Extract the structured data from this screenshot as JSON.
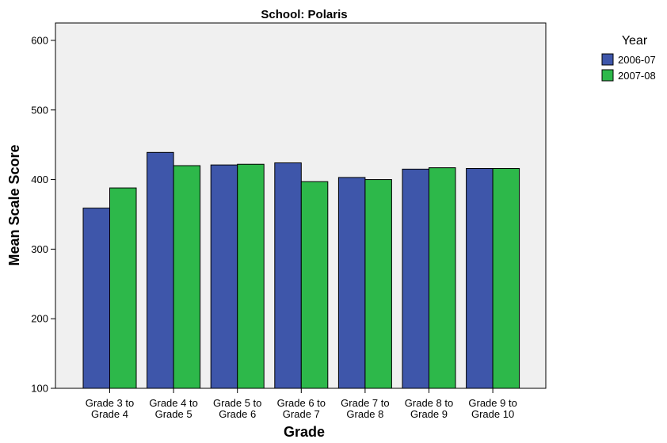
{
  "chart_data": {
    "type": "bar",
    "title": "School: Polaris",
    "xlabel": "Grade",
    "ylabel": "Mean Scale Score",
    "categories": [
      [
        "Grade 3 to",
        "Grade 4"
      ],
      [
        "Grade 4 to",
        "Grade 5"
      ],
      [
        "Grade 5 to",
        "Grade 6"
      ],
      [
        "Grade 6 to",
        "Grade 7"
      ],
      [
        "Grade 7 to",
        "Grade 8"
      ],
      [
        "Grade 8 to",
        "Grade 9"
      ],
      [
        "Grade 9 to",
        "Grade 10"
      ]
    ],
    "series": [
      {
        "name": "2006-07",
        "color": "#3e56aa",
        "values": [
          359,
          439,
          421,
          424,
          403,
          415,
          416
        ]
      },
      {
        "name": "2007-08",
        "color": "#2db84a",
        "values": [
          388,
          420,
          422,
          397,
          400,
          417,
          416
        ]
      }
    ],
    "ylim": [
      100,
      625
    ],
    "yticks": [
      100,
      200,
      300,
      400,
      500,
      600
    ],
    "legend": {
      "title": "Year",
      "position": "top-right"
    },
    "plot_background": "#f0f0f0",
    "grid": false
  }
}
